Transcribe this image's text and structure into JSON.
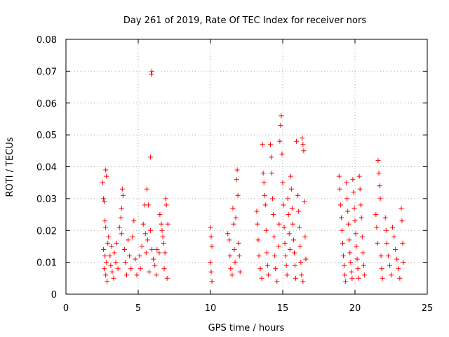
{
  "chart_data": {
    "type": "scatter",
    "title": "Day 261 of 2019, Rate Of TEC Index for receiver nors",
    "xlabel": "GPS time / hours",
    "ylabel": "ROTI / TECUs",
    "xlim": [
      0,
      25
    ],
    "ylim": [
      0,
      0.08
    ],
    "x_ticks": [
      "0",
      "5",
      "10",
      "15",
      "20",
      "25"
    ],
    "y_ticks": [
      "0",
      "0.01",
      "0.02",
      "0.03",
      "0.04",
      "0.05",
      "0.06",
      "0.07",
      "0.08"
    ],
    "grid": true,
    "marker": "plus",
    "color": "#ff0000",
    "series": [
      {
        "values": [
          [
            2.55,
            0.035
          ],
          [
            2.6,
            0.03
          ],
          [
            2.65,
            0.029
          ],
          [
            2.75,
            0.039
          ],
          [
            2.8,
            0.037
          ],
          [
            2.7,
            0.023
          ],
          [
            2.75,
            0.021
          ],
          [
            2.6,
            0.014
          ],
          [
            2.7,
            0.012
          ],
          [
            2.8,
            0.01
          ],
          [
            2.65,
            0.008
          ],
          [
            2.75,
            0.006
          ],
          [
            2.85,
            0.004
          ],
          [
            2.9,
            0.016
          ],
          [
            2.95,
            0.018
          ],
          [
            3.05,
            0.012
          ],
          [
            3.1,
            0.009
          ],
          [
            3.2,
            0.007
          ],
          [
            3.3,
            0.005
          ],
          [
            3.15,
            0.015
          ],
          [
            3.35,
            0.013
          ],
          [
            3.45,
            0.01
          ],
          [
            3.5,
            0.016
          ],
          [
            3.6,
            0.008
          ],
          [
            3.7,
            0.021
          ],
          [
            3.8,
            0.024
          ],
          [
            3.85,
            0.027
          ],
          [
            3.9,
            0.033
          ],
          [
            3.95,
            0.031
          ],
          [
            3.85,
            0.019
          ],
          [
            4.05,
            0.014
          ],
          [
            4.1,
            0.01
          ],
          [
            4.2,
            0.006
          ],
          [
            4.3,
            0.017
          ],
          [
            4.4,
            0.012
          ],
          [
            4.5,
            0.008
          ],
          [
            4.6,
            0.018
          ],
          [
            4.7,
            0.023
          ],
          [
            4.8,
            0.011
          ],
          [
            4.9,
            0.006
          ],
          [
            5.1,
            0.012
          ],
          [
            5.15,
            0.008
          ],
          [
            5.25,
            0.015
          ],
          [
            5.35,
            0.022
          ],
          [
            5.45,
            0.028
          ],
          [
            5.5,
            0.019
          ],
          [
            5.55,
            0.013
          ],
          [
            5.6,
            0.033
          ],
          [
            5.65,
            0.017
          ],
          [
            5.7,
            0.028
          ],
          [
            5.75,
            0.007
          ],
          [
            5.85,
            0.043
          ],
          [
            5.9,
            0.069
          ],
          [
            5.95,
            0.07
          ],
          [
            5.85,
            0.02
          ],
          [
            5.95,
            0.014
          ],
          [
            6.05,
            0.011
          ],
          [
            6.15,
            0.009
          ],
          [
            6.25,
            0.006
          ],
          [
            6.3,
            0.014
          ],
          [
            6.45,
            0.013
          ],
          [
            6.5,
            0.025
          ],
          [
            6.6,
            0.022
          ],
          [
            6.65,
            0.02
          ],
          [
            6.7,
            0.018
          ],
          [
            6.75,
            0.016
          ],
          [
            6.85,
            0.013
          ],
          [
            6.9,
            0.03
          ],
          [
            6.95,
            0.028
          ],
          [
            7.05,
            0.022
          ],
          [
            6.8,
            0.008
          ],
          [
            7.0,
            0.005
          ],
          [
            10.0,
            0.021
          ],
          [
            10.05,
            0.018
          ],
          [
            10.1,
            0.015
          ],
          [
            10.0,
            0.01
          ],
          [
            10.05,
            0.007
          ],
          [
            10.1,
            0.004
          ],
          [
            11.2,
            0.019
          ],
          [
            11.3,
            0.017
          ],
          [
            11.35,
            0.012
          ],
          [
            11.4,
            0.008
          ],
          [
            11.5,
            0.006
          ],
          [
            11.55,
            0.027
          ],
          [
            11.6,
            0.022
          ],
          [
            11.65,
            0.014
          ],
          [
            11.7,
            0.01
          ],
          [
            11.75,
            0.024
          ],
          [
            11.8,
            0.036
          ],
          [
            11.85,
            0.039
          ],
          [
            11.9,
            0.031
          ],
          [
            11.95,
            0.016
          ],
          [
            12.0,
            0.012
          ],
          [
            12.05,
            0.007
          ],
          [
            13.2,
            0.026
          ],
          [
            13.25,
            0.022
          ],
          [
            13.3,
            0.017
          ],
          [
            13.35,
            0.012
          ],
          [
            13.45,
            0.008
          ],
          [
            13.55,
            0.005
          ],
          [
            13.6,
            0.047
          ],
          [
            13.65,
            0.038
          ],
          [
            13.7,
            0.035
          ],
          [
            13.75,
            0.031
          ],
          [
            13.8,
            0.028
          ],
          [
            13.85,
            0.02
          ],
          [
            13.9,
            0.013
          ],
          [
            13.95,
            0.009
          ],
          [
            14.0,
            0.006
          ],
          [
            14.15,
            0.047
          ],
          [
            14.2,
            0.043
          ],
          [
            14.25,
            0.038
          ],
          [
            14.3,
            0.03
          ],
          [
            14.35,
            0.025
          ],
          [
            14.4,
            0.018
          ],
          [
            14.45,
            0.012
          ],
          [
            14.5,
            0.008
          ],
          [
            14.6,
            0.004
          ],
          [
            14.7,
            0.015
          ],
          [
            14.75,
            0.022
          ],
          [
            14.8,
            0.048
          ],
          [
            14.85,
            0.053
          ],
          [
            14.9,
            0.056
          ],
          [
            14.95,
            0.044
          ],
          [
            15.0,
            0.035
          ],
          [
            15.05,
            0.028
          ],
          [
            15.1,
            0.021
          ],
          [
            15.15,
            0.016
          ],
          [
            15.2,
            0.012
          ],
          [
            15.25,
            0.009
          ],
          [
            15.3,
            0.006
          ],
          [
            15.35,
            0.03
          ],
          [
            15.4,
            0.025
          ],
          [
            15.45,
            0.019
          ],
          [
            15.5,
            0.014
          ],
          [
            15.55,
            0.037
          ],
          [
            15.6,
            0.033
          ],
          [
            15.65,
            0.027
          ],
          [
            15.7,
            0.022
          ],
          [
            15.75,
            0.017
          ],
          [
            15.8,
            0.013
          ],
          [
            15.85,
            0.009
          ],
          [
            15.9,
            0.005
          ],
          [
            15.95,
            0.048
          ],
          [
            16.05,
            0.031
          ],
          [
            16.1,
            0.026
          ],
          [
            16.15,
            0.021
          ],
          [
            16.2,
            0.015
          ],
          [
            16.25,
            0.01
          ],
          [
            16.3,
            0.006
          ],
          [
            16.35,
            0.049
          ],
          [
            16.4,
            0.047
          ],
          [
            16.45,
            0.045
          ],
          [
            16.5,
            0.029
          ],
          [
            16.55,
            0.018
          ],
          [
            16.6,
            0.011
          ],
          [
            16.4,
            0.004
          ],
          [
            18.9,
            0.037
          ],
          [
            18.95,
            0.033
          ],
          [
            19.0,
            0.028
          ],
          [
            19.05,
            0.024
          ],
          [
            19.1,
            0.02
          ],
          [
            19.15,
            0.016
          ],
          [
            19.2,
            0.012
          ],
          [
            19.25,
            0.009
          ],
          [
            19.3,
            0.006
          ],
          [
            19.35,
            0.004
          ],
          [
            19.4,
            0.035
          ],
          [
            19.45,
            0.03
          ],
          [
            19.5,
            0.026
          ],
          [
            19.55,
            0.022
          ],
          [
            19.6,
            0.017
          ],
          [
            19.65,
            0.013
          ],
          [
            19.7,
            0.01
          ],
          [
            19.75,
            0.007
          ],
          [
            19.8,
            0.005
          ],
          [
            19.85,
            0.036
          ],
          [
            19.9,
            0.032
          ],
          [
            19.95,
            0.027
          ],
          [
            20.0,
            0.023
          ],
          [
            20.05,
            0.019
          ],
          [
            20.1,
            0.015
          ],
          [
            20.15,
            0.011
          ],
          [
            20.2,
            0.008
          ],
          [
            20.25,
            0.005
          ],
          [
            20.3,
            0.037
          ],
          [
            20.35,
            0.033
          ],
          [
            20.4,
            0.028
          ],
          [
            20.45,
            0.024
          ],
          [
            20.5,
            0.018
          ],
          [
            20.55,
            0.013
          ],
          [
            20.6,
            0.009
          ],
          [
            20.65,
            0.006
          ],
          [
            21.45,
            0.025
          ],
          [
            21.5,
            0.021
          ],
          [
            21.55,
            0.016
          ],
          [
            21.6,
            0.042
          ],
          [
            21.65,
            0.038
          ],
          [
            21.7,
            0.034
          ],
          [
            21.75,
            0.03
          ],
          [
            21.8,
            0.012
          ],
          [
            21.85,
            0.008
          ],
          [
            21.9,
            0.005
          ],
          [
            22.1,
            0.024
          ],
          [
            22.15,
            0.02
          ],
          [
            22.2,
            0.016
          ],
          [
            22.3,
            0.012
          ],
          [
            22.4,
            0.009
          ],
          [
            22.5,
            0.006
          ],
          [
            22.6,
            0.021
          ],
          [
            22.7,
            0.018
          ],
          [
            22.8,
            0.014
          ],
          [
            22.9,
            0.011
          ],
          [
            23.0,
            0.008
          ],
          [
            23.1,
            0.005
          ],
          [
            23.2,
            0.027
          ],
          [
            23.25,
            0.023
          ],
          [
            23.3,
            0.016
          ],
          [
            23.35,
            0.01
          ]
        ]
      }
    ]
  }
}
